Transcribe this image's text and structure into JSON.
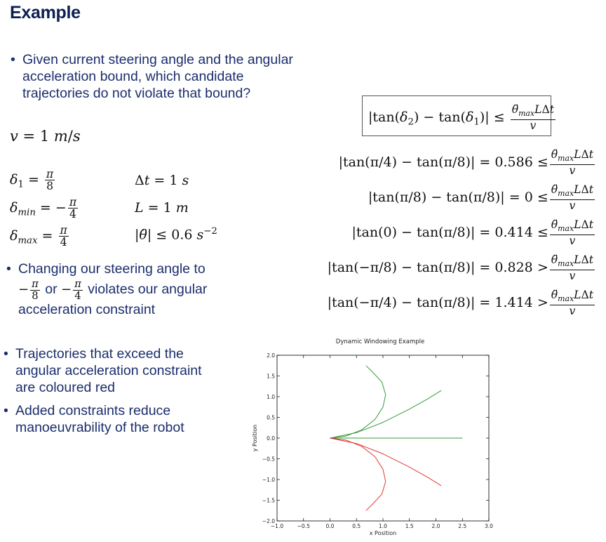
{
  "page": {
    "title": "Example",
    "bullets": {
      "b1_line1": "Given current steering angle and the angular",
      "b1_line2": "acceleration bound, which candidate",
      "b1_line3": "trajectories do not violate that bound?",
      "b2_line1": "Changing our steering angle to",
      "b2_or": "or",
      "b2_line2_end": "violates our angular",
      "b2_line3": "acceleration constraint",
      "b3_line1": "Trajectories that exceed the",
      "b3_line2": "angular acceleration constraint",
      "b3_line3": "are coloured red",
      "b4_line1": "Added constraints reduce",
      "b4_line2": "manoeuvrability of the robot"
    },
    "params": {
      "velocity": "v = 1 m/s",
      "delta1": "δ₁ = π/8",
      "delta_min": "δ_min = −π/4",
      "delta_max": "δ_max = π/4",
      "dt": "Δt = 1 s",
      "L": "L = 1 m",
      "theta_bound": "|θ̈| ≤ 0.6 s⁻²"
    },
    "bound_formula": "|tan(δ₂) − tan(δ₁)| ≤ θ̈_max LΔt / v",
    "equations": [
      {
        "lhs": "|tan(π/4) − tan(π/8)| = 0.586",
        "op": "≤"
      },
      {
        "lhs": "|tan(π/8) − tan(π/8)| = 0",
        "op": "≤"
      },
      {
        "lhs": "|tan(0) − tan(π/8)| = 0.414",
        "op": "≤"
      },
      {
        "lhs": "|tan(−π/8) − tan(π/8)| = 0.828",
        "op": ">"
      },
      {
        "lhs": "|tan(−π/4) − tan(π/8)| = 1.414",
        "op": ">"
      }
    ]
  },
  "chart_data": {
    "type": "line",
    "title": "Dynamic Windowing Example",
    "xlabel": "x Position",
    "ylabel": "y Position",
    "xlim": [
      -1.0,
      3.0
    ],
    "ylim": [
      -2.0,
      2.0
    ],
    "xticks": [
      "−1.0",
      "−0.5",
      "0.0",
      "0.5",
      "1.0",
      "1.5",
      "2.0",
      "2.5",
      "3.0"
    ],
    "yticks": [
      "−2.0",
      "−1.5",
      "−1.0",
      "−0.5",
      "0.0",
      "0.5",
      "1.0",
      "1.5",
      "2.0"
    ],
    "grid": false,
    "series": [
      {
        "color": "#3a9a3a",
        "x": [
          0.0,
          0.3,
          0.6,
          0.85,
          1.0,
          1.05,
          0.98,
          0.8,
          0.68
        ],
        "y": [
          0.0,
          0.05,
          0.2,
          0.45,
          0.75,
          1.05,
          1.35,
          1.6,
          1.75
        ]
      },
      {
        "color": "#3a9a3a",
        "x": [
          0.0,
          0.5,
          1.0,
          1.5,
          1.85,
          2.1
        ],
        "y": [
          0.0,
          0.13,
          0.38,
          0.7,
          0.95,
          1.15
        ]
      },
      {
        "color": "#3a9a3a",
        "x": [
          0.0,
          2.5
        ],
        "y": [
          0.0,
          0.0
        ]
      },
      {
        "color": "#e03a3a",
        "x": [
          0.0,
          0.5,
          1.0,
          1.5,
          1.85,
          2.1
        ],
        "y": [
          0.0,
          -0.13,
          -0.38,
          -0.7,
          -0.95,
          -1.15
        ]
      },
      {
        "color": "#e03a3a",
        "x": [
          0.0,
          0.3,
          0.6,
          0.85,
          1.0,
          1.05,
          0.98,
          0.8,
          0.68
        ],
        "y": [
          0.0,
          -0.05,
          -0.2,
          -0.45,
          -0.75,
          -1.05,
          -1.35,
          -1.6,
          -1.75
        ]
      }
    ]
  }
}
